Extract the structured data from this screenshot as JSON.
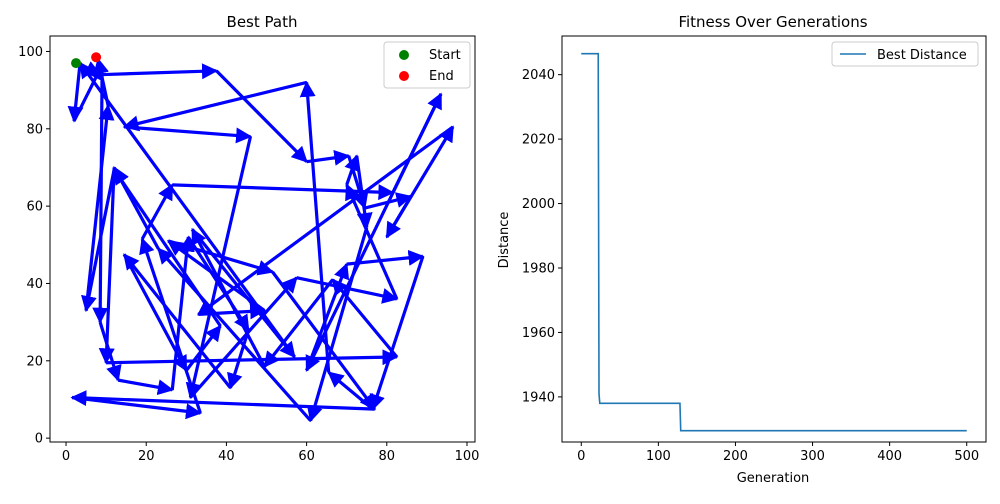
{
  "chart_data": [
    {
      "type": "line",
      "title": "Best Path",
      "xlabel": "",
      "ylabel": "",
      "xlim": [
        -4,
        102
      ],
      "ylim": [
        -1,
        104
      ],
      "xticks": [
        "0",
        "20",
        "40",
        "60",
        "80",
        "100"
      ],
      "yticks": [
        "0",
        "20",
        "40",
        "60",
        "80",
        "100"
      ],
      "legend": {
        "placement": "top-right",
        "entries": [
          {
            "label": "Start",
            "color": "#008000",
            "marker": "circle"
          },
          {
            "label": "End",
            "color": "#ff0000",
            "marker": "circle"
          }
        ]
      },
      "path_color": "#0000ff",
      "path": [
        [
          2.5,
          97
        ],
        [
          8.5,
          94
        ],
        [
          37.5,
          95
        ],
        [
          60,
          71.5
        ],
        [
          70.5,
          73
        ],
        [
          74.5,
          59.5
        ],
        [
          86,
          62.5
        ],
        [
          80,
          52
        ],
        [
          96.5,
          80.5
        ],
        [
          33,
          32
        ],
        [
          49.5,
          33
        ],
        [
          25.5,
          51
        ],
        [
          51.5,
          43
        ],
        [
          77,
          7.5
        ],
        [
          1.5,
          10.5
        ],
        [
          33.5,
          6.5
        ],
        [
          19,
          51.5
        ],
        [
          26.5,
          65.5
        ],
        [
          81.5,
          63.5
        ],
        [
          93.5,
          89
        ],
        [
          60,
          17.5
        ],
        [
          70,
          45
        ],
        [
          89,
          47
        ],
        [
          76.5,
          7.5
        ],
        [
          65.5,
          17
        ],
        [
          60,
          92
        ],
        [
          14.5,
          80.5
        ],
        [
          46,
          78
        ],
        [
          31,
          10.5
        ],
        [
          57.5,
          41.5
        ],
        [
          82.5,
          36
        ],
        [
          70,
          65.5
        ],
        [
          72.5,
          73
        ],
        [
          75,
          54.5
        ],
        [
          61,
          4.5
        ],
        [
          23,
          49
        ],
        [
          12,
          70
        ],
        [
          10,
          19.5
        ],
        [
          82.5,
          21
        ],
        [
          66.5,
          41
        ],
        [
          49.5,
          18.5
        ],
        [
          31.5,
          54
        ],
        [
          57,
          21
        ],
        [
          3.5,
          97
        ],
        [
          2,
          82
        ],
        [
          9,
          96.5
        ],
        [
          8.5,
          30
        ],
        [
          13,
          15
        ],
        [
          26.5,
          12.5
        ],
        [
          30.5,
          52
        ],
        [
          45.5,
          28
        ],
        [
          41,
          13
        ],
        [
          14.5,
          47.5
        ],
        [
          30,
          17.5
        ],
        [
          38.5,
          29
        ],
        [
          12,
          69.5
        ],
        [
          5,
          33
        ],
        [
          10.5,
          86
        ],
        [
          8,
          98
        ]
      ],
      "start": [
        2.5,
        97
      ],
      "end": [
        7.5,
        98.5
      ]
    },
    {
      "type": "line",
      "title": "Fitness Over Generations",
      "xlabel": "Generation",
      "ylabel": "Distance",
      "xlim": [
        -25,
        525
      ],
      "ylim": [
        1926,
        2052
      ],
      "xticks": [
        "0",
        "100",
        "200",
        "300",
        "400",
        "500"
      ],
      "yticks": [
        "1940",
        "1960",
        "1980",
        "2000",
        "2020",
        "2040"
      ],
      "legend": {
        "placement": "top-right"
      },
      "series": [
        {
          "name": "Best Distance",
          "color": "#1f77b4",
          "points": [
            [
              0,
              2046.5
            ],
            [
              22,
              2046.5
            ],
            [
              23,
              1941
            ],
            [
              24,
              1938
            ],
            [
              128,
              1938
            ],
            [
              129,
              1929.5
            ],
            [
              500,
              1929.5
            ]
          ]
        }
      ]
    }
  ]
}
